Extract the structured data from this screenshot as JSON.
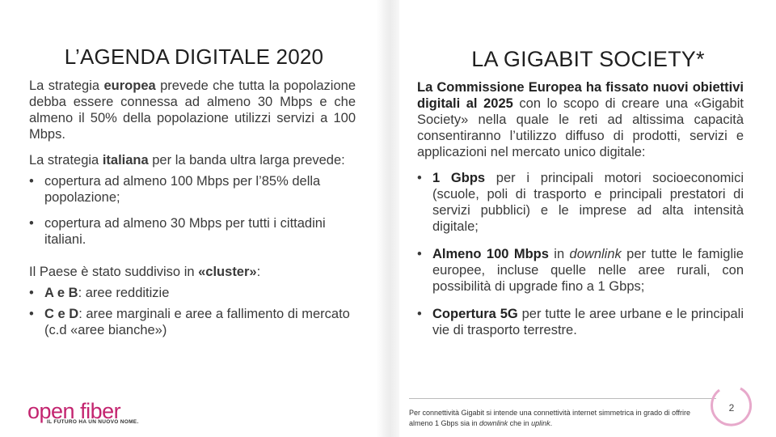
{
  "left": {
    "title": "L’AGENDA DIGITALE 2020",
    "p1": {
      "a": "La strategia ",
      "b": "europea",
      "c": " prevede che tutta la popolazione debba essere connessa ad almeno 30 Mbps e che almeno il 50% della popolazione utilizzi servizi a 100 Mbps."
    },
    "p2": {
      "a": "La strategia ",
      "b": "italiana",
      "c": " per la banda ultra larga prevede:"
    },
    "italian_bullets": [
      "copertura ad almeno 100 Mbps per l’85% della popolazione;",
      "copertura ad almeno 30 Mbps per tutti i cittadini italiani."
    ],
    "p3": {
      "a": "Il Paese è stato suddiviso in ",
      "b": "«cluster»",
      "c": ":"
    },
    "cluster_bullets": [
      {
        "bold": "A e B",
        "text": ": aree redditizie"
      },
      {
        "bold": "C e D",
        "text": ":  aree marginali e  aree a fallimento di mercato (c.d «aree bianche»)"
      }
    ]
  },
  "right": {
    "title": "LA GIGABIT SOCIETY*",
    "intro": {
      "b": "La Commissione Europea ha fissato nuovi obiettivi digitali al 2025",
      "c": " con lo scopo di creare una «Gigabit Society» nella quale le reti ad altissima capacità consentiranno l’utilizzo diffuso di prodotti, servizi e applicazioni nel mercato unico digitale:"
    },
    "bullet1": {
      "bold": "1 Gbps",
      "text": " per i principali motori socioeconomici (scuole, poli di trasporto e principali prestatori di servizi pubblici) e le imprese ad alta intensità digitale;"
    },
    "bullet2": {
      "bold": "Almeno 100 Mbps",
      "pre": " in ",
      "italic": "downlink",
      "text": " per tutte le famiglie europee, incluse quelle nelle aree rurali, con possibilità di upgrade fino a 1 Gbps;"
    },
    "bullet3": {
      "bold": "Copertura 5G",
      "text": " per tutte le aree urbane e le principali vie di trasporto terrestre."
    }
  },
  "footnote": {
    "a": "Per connettività Gigabit si intende una connettività internet simmetrica in grado di offrire almeno 1 Gbps sia in ",
    "i1": "downlink",
    "b": " che in ",
    "i2": "uplink",
    "c": "."
  },
  "page_number": "2",
  "logo": {
    "word": "open fiber",
    "tagline": "IL FUTURO HA UN NUOVO NOME."
  },
  "colors": {
    "brand": "#c3246f",
    "ring": "#e7a9cb",
    "text": "#3a3a3a"
  }
}
